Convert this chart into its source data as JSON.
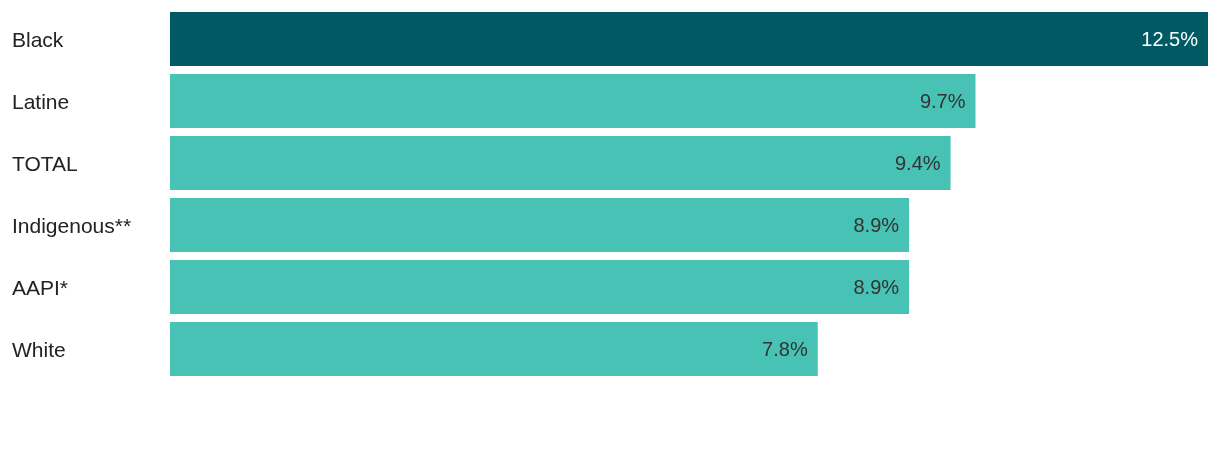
{
  "chart_data": {
    "type": "bar",
    "orientation": "horizontal",
    "categories": [
      "Black",
      "Latine",
      "TOTAL",
      "Indigenous**",
      "AAPI*",
      "White"
    ],
    "values": [
      12.5,
      9.7,
      9.4,
      8.9,
      8.9,
      7.8
    ],
    "colors": [
      "#005a65",
      "#47c2b4",
      "#47c2b4",
      "#47c2b4",
      "#47c2b4",
      "#47c2b4"
    ],
    "value_labels": [
      "12.5%",
      "9.7%",
      "9.4%",
      "8.9%",
      "8.9%",
      "7.8%"
    ],
    "xlim": [
      0,
      12.5
    ],
    "grid": false
  }
}
